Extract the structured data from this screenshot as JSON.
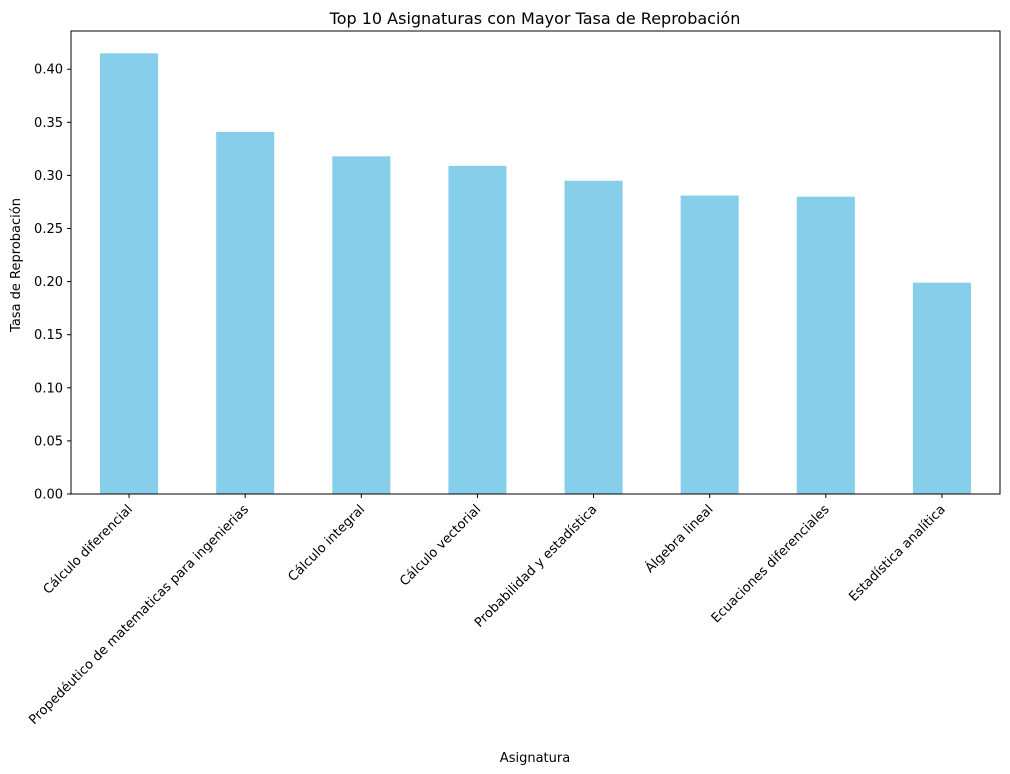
{
  "chart_data": {
    "type": "bar",
    "title": "Top 10 Asignaturas con Mayor Tasa de Reprobación",
    "xlabel": "Asignatura",
    "ylabel": "Tasa de Reprobación",
    "categories": [
      "Cálculo diferencial",
      "Propedéutico de matematicas para ingenierias",
      "Cálculo integral",
      "Cálculo vectorial",
      "Probabilidad y estadística",
      "Álgebra lineal",
      "Ecuaciones diferenciales",
      "Estadística analítica"
    ],
    "values": [
      0.415,
      0.341,
      0.318,
      0.309,
      0.295,
      0.281,
      0.28,
      0.199
    ],
    "ylim": [
      0,
      0.436
    ],
    "yticks": [
      "0.00",
      "0.05",
      "0.10",
      "0.15",
      "0.20",
      "0.25",
      "0.30",
      "0.35",
      "0.40"
    ],
    "bar_color": "#87ceeb",
    "grid": false,
    "legend": "none"
  }
}
